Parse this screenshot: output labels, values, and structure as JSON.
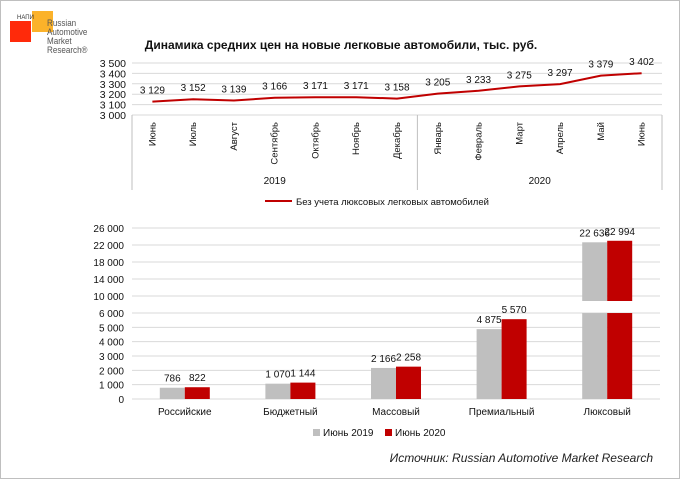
{
  "logo": {
    "small": "НАПИ",
    "text": "Russian\nAutomotive\nMarket\nResearch®"
  },
  "source": "Источник: Russian Automotive Market Research",
  "chart_data": [
    {
      "type": "line",
      "title": "Динамика средних цен на новые легковые автомобили, тыс. руб.",
      "categories": [
        "Июнь",
        "Июль",
        "Август",
        "Сентябрь",
        "Октябрь",
        "Ноябрь",
        "Декабрь",
        "Январь",
        "Февраль",
        "Март",
        "Апрель",
        "Май",
        "Июнь"
      ],
      "groups": [
        {
          "label": "2019",
          "count": 7
        },
        {
          "label": "2020",
          "count": 6
        }
      ],
      "series": [
        {
          "name": "Без учета люксовых легковых автомобилей",
          "color": "#c00000",
          "values": [
            3129,
            3152,
            3139,
            3166,
            3171,
            3171,
            3158,
            3205,
            3233,
            3275,
            3297,
            3379,
            3402
          ]
        }
      ],
      "value_labels": [
        "3 129",
        "3 152",
        "3 139",
        "3 166",
        "3 171",
        "3 171",
        "3 158",
        "3 205",
        "3 233",
        "3 275",
        "3 297",
        "3 379",
        "3 402"
      ],
      "ylim": [
        3000,
        3500
      ],
      "yticks": [
        "3 000",
        "3 100",
        "3 200",
        "3 300",
        "3 400",
        "3 500"
      ],
      "grid": true,
      "legend": "bottom"
    },
    {
      "type": "bar",
      "categories": [
        "Российские",
        "Бюджетный",
        "Массовый",
        "Премиальный",
        "Люксовый"
      ],
      "series": [
        {
          "name": "Июнь 2019",
          "color": "#bfbfbf",
          "values": [
            786,
            1070,
            2166,
            4875,
            22636
          ],
          "labels": [
            "786",
            "1 070",
            "2 166",
            "4 875",
            "22 636"
          ]
        },
        {
          "name": "Июнь 2020",
          "color": "#c00000",
          "values": [
            822,
            1144,
            2258,
            5570,
            22994
          ],
          "labels": [
            "822",
            "1 144",
            "2 258",
            "5 570",
            "22 994"
          ]
        }
      ],
      "axis_break": {
        "lower": [
          0,
          6000
        ],
        "upper": [
          10000,
          26000
        ]
      },
      "yticks_lower": [
        "0",
        "1 000",
        "2 000",
        "3 000",
        "4 000",
        "5 000",
        "6 000"
      ],
      "yticks_upper": [
        "10 000",
        "14 000",
        "18 000",
        "22 000",
        "26 000"
      ],
      "grid": true,
      "legend": "bottom"
    }
  ]
}
